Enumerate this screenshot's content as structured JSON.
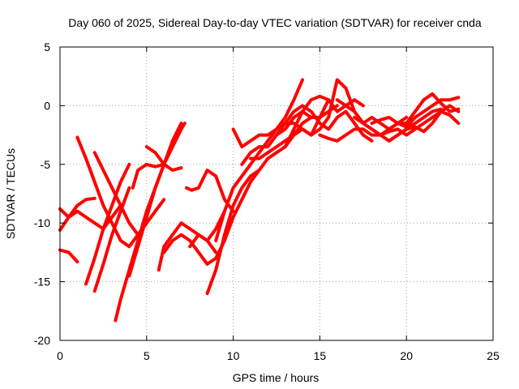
{
  "chart_data": {
    "type": "line",
    "title": "Day 060 of 2025, Sidereal Day-to-day VTEC variation (SDTVAR) for receiver cnda",
    "xlabel": "GPS time / hours",
    "ylabel": "SDTVAR / TECUs",
    "xlim": [
      0,
      25
    ],
    "ylim": [
      -20,
      5
    ],
    "xticks": [
      0,
      5,
      10,
      15,
      20,
      25
    ],
    "yticks": [
      -20,
      -15,
      -10,
      -5,
      0,
      5
    ],
    "xtick_labels": [
      "0",
      "5",
      "10",
      "15",
      "20",
      "25"
    ],
    "ytick_labels": [
      "-20",
      "-15",
      "-10",
      "-5",
      "0",
      "5"
    ],
    "grid": true,
    "legend": "none",
    "color": "#ff0000",
    "series": [
      {
        "x": [
          0.0,
          0.5,
          1.0,
          1.5,
          2.0
        ],
        "y": [
          -8.8,
          -9.5,
          -8.5,
          -8.0,
          -7.9
        ]
      },
      {
        "x": [
          0.0,
          0.5,
          1.0
        ],
        "y": [
          -12.3,
          -12.5,
          -13.3
        ]
      },
      {
        "x": [
          0.0,
          0.5,
          1.0,
          1.5,
          2.0,
          2.5,
          3.0,
          3.5
        ],
        "y": [
          -10.6,
          -9.5,
          -9.0,
          -9.5,
          -10.0,
          -10.5,
          -9.5,
          -8.5
        ]
      },
      {
        "x": [
          1.0,
          1.5,
          2.0,
          2.5,
          3.0,
          3.5,
          4.0,
          4.5,
          5.0
        ],
        "y": [
          -2.7,
          -4.5,
          -6.5,
          -8.5,
          -10.0,
          -11.5,
          -12.0,
          -11.0,
          -10.0
        ]
      },
      {
        "x": [
          1.5,
          2.0,
          2.5,
          3.0,
          3.5,
          4.0
        ],
        "y": [
          -15.2,
          -13.0,
          -10.5,
          -8.5,
          -6.5,
          -5.0
        ]
      },
      {
        "x": [
          2.0,
          2.5,
          3.0,
          3.5,
          4.0,
          4.5,
          5.0,
          5.5,
          6.0
        ],
        "y": [
          -4.0,
          -5.5,
          -7.0,
          -8.5,
          -10.0,
          -11.0,
          -10.0,
          -9.0,
          -8.0
        ]
      },
      {
        "x": [
          2.0,
          2.5,
          3.0,
          3.5,
          4.0
        ],
        "y": [
          -15.8,
          -13.5,
          -11.0,
          -9.0,
          -7.0
        ]
      },
      {
        "x": [
          3.2,
          3.5,
          4.0,
          4.5,
          5.0,
          5.5,
          6.0,
          6.5,
          7.0
        ],
        "y": [
          -18.3,
          -16.5,
          -14.0,
          -11.5,
          -9.0,
          -7.0,
          -5.0,
          -3.0,
          -1.5
        ]
      },
      {
        "x": [
          4.0,
          4.5,
          5.0,
          5.5,
          6.0,
          6.5,
          7.0,
          7.2
        ],
        "y": [
          -14.5,
          -12.0,
          -9.5,
          -7.0,
          -5.0,
          -3.5,
          -2.0,
          -1.5
        ]
      },
      {
        "x": [
          4.2,
          4.5,
          5.0,
          5.5,
          6.0
        ],
        "y": [
          -7.0,
          -5.5,
          -5.0,
          -5.2,
          -5.0
        ]
      },
      {
        "x": [
          5.0,
          5.5,
          6.0,
          6.5,
          7.0
        ],
        "y": [
          -3.5,
          -4.0,
          -5.0,
          -5.5,
          -5.3
        ]
      },
      {
        "x": [
          5.7,
          6.0,
          6.5,
          7.0,
          7.5,
          8.0,
          8.5,
          9.0,
          9.5
        ],
        "y": [
          -14.0,
          -12.0,
          -11.0,
          -10.0,
          -10.5,
          -11.0,
          -11.5,
          -10.5,
          -9.0
        ]
      },
      {
        "x": [
          6.0,
          6.5,
          7.0,
          7.5,
          8.0,
          8.5,
          9.0
        ],
        "y": [
          -12.5,
          -11.5,
          -11.0,
          -11.5,
          -12.5,
          -13.5,
          -13.0
        ]
      },
      {
        "x": [
          7.5,
          8.0,
          8.5,
          9.0
        ],
        "y": [
          -12.0,
          -11.0,
          -11.5,
          -12.5
        ]
      },
      {
        "x": [
          7.3,
          7.6,
          8.0,
          8.5,
          9.0,
          9.5,
          10.0
        ],
        "y": [
          -7.0,
          -7.2,
          -7.0,
          -5.5,
          -6.0,
          -8.0,
          -9.0
        ]
      },
      {
        "x": [
          8.5,
          9.0,
          9.5,
          10.0,
          10.5,
          11.0,
          11.5
        ],
        "y": [
          -16.0,
          -14.0,
          -11.0,
          -8.5,
          -7.0,
          -6.0,
          -5.5
        ]
      },
      {
        "x": [
          9.0,
          9.5,
          10.0,
          10.5,
          11.0,
          11.5,
          12.0
        ],
        "y": [
          -13.0,
          -11.5,
          -9.5,
          -8.0,
          -6.5,
          -5.5,
          -4.5
        ]
      },
      {
        "x": [
          9.0,
          9.5,
          10.0,
          10.5,
          11.0,
          11.5,
          12.0,
          12.5,
          13.0,
          13.5,
          14.0
        ],
        "y": [
          -11.5,
          -9.0,
          -7.0,
          -6.0,
          -5.0,
          -4.0,
          -3.0,
          -2.0,
          -1.0,
          0.5,
          2.2
        ]
      },
      {
        "x": [
          10.0,
          10.5,
          11.0,
          11.5,
          12.0,
          12.5,
          13.0,
          13.5,
          14.0,
          14.5,
          15.0,
          15.5
        ],
        "y": [
          -2.0,
          -3.5,
          -3.0,
          -2.5,
          -2.5,
          -2.0,
          -1.5,
          -1.5,
          -2.0,
          -2.5,
          -1.0,
          0.5
        ]
      },
      {
        "x": [
          10.5,
          11.0,
          11.5,
          12.0,
          12.5,
          13.0,
          13.5,
          14.0,
          14.5
        ],
        "y": [
          -5.0,
          -4.0,
          -3.5,
          -3.5,
          -2.5,
          -2.0,
          -1.0,
          -0.5,
          -1.0
        ]
      },
      {
        "x": [
          11.0,
          11.5,
          12.0,
          12.5,
          13.0,
          13.5,
          14.0,
          14.5,
          15.0,
          15.5,
          16.0
        ],
        "y": [
          -4.5,
          -4.5,
          -4.0,
          -3.5,
          -3.0,
          -2.5,
          -1.5,
          -1.0,
          -1.0,
          -0.5,
          0.0
        ]
      },
      {
        "x": [
          12.0,
          12.5,
          13.0,
          13.5,
          14.0,
          14.5,
          15.0,
          15.5,
          16.0,
          16.5,
          17.0,
          17.5
        ],
        "y": [
          -4.5,
          -4.0,
          -3.5,
          -2.0,
          -0.5,
          0.5,
          0.8,
          0.5,
          -0.5,
          0.0,
          0.5,
          0.0
        ]
      },
      {
        "x": [
          12.5,
          13.0,
          13.5,
          14.0,
          14.5,
          15.0,
          15.5,
          16.0,
          16.5,
          17.0,
          17.5,
          18.0
        ],
        "y": [
          -2.5,
          -1.5,
          -0.5,
          0.0,
          -0.5,
          -1.5,
          -2.0,
          -1.0,
          -0.5,
          -1.5,
          -2.5,
          -3.0
        ]
      },
      {
        "x": [
          13.0,
          13.5,
          14.0,
          14.5,
          15.0,
          15.5,
          16.0,
          16.5,
          17.0,
          17.5,
          18.0,
          18.5,
          19.0,
          19.5,
          20.0
        ],
        "y": [
          -3.5,
          -2.5,
          -2.0,
          -2.5,
          -2.0,
          -1.0,
          2.2,
          1.5,
          -0.5,
          -1.5,
          -1.0,
          -1.5,
          -2.0,
          -1.5,
          -1.0
        ]
      },
      {
        "x": [
          15.0,
          15.5,
          16.0,
          16.5,
          17.0,
          17.5,
          18.0,
          18.5,
          19.0,
          19.5,
          20.0,
          20.5,
          21.0,
          21.5,
          22.0
        ],
        "y": [
          -2.5,
          -2.8,
          -3.0,
          -2.5,
          -2.0,
          -2.0,
          -2.5,
          -2.5,
          -3.0,
          -2.5,
          -2.0,
          -1.5,
          -1.0,
          -0.5,
          -0.3
        ]
      },
      {
        "x": [
          16.0,
          16.5,
          17.0,
          17.5,
          18.0,
          18.5,
          19.0,
          19.5,
          20.0,
          20.5,
          21.0,
          21.5,
          22.0,
          22.5,
          23.0
        ],
        "y": [
          0.5,
          0.0,
          -0.5,
          -1.5,
          -2.0,
          -2.5,
          -2.0,
          -1.5,
          -1.8,
          -1.0,
          -0.5,
          0.0,
          0.5,
          0.5,
          0.7
        ]
      },
      {
        "x": [
          17.0,
          17.5,
          18.0,
          18.5,
          19.0,
          19.5,
          20.0,
          20.5,
          21.0,
          21.5,
          22.0,
          22.5,
          23.0
        ],
        "y": [
          -1.0,
          -1.5,
          -2.0,
          -2.5,
          -2.2,
          -2.0,
          -2.5,
          -2.0,
          -1.5,
          -1.0,
          -0.5,
          -0.8,
          -1.5
        ]
      },
      {
        "x": [
          18.0,
          18.5,
          19.0,
          19.5,
          20.0,
          20.5,
          21.0,
          21.5,
          22.0,
          22.5,
          23.0
        ],
        "y": [
          -1.5,
          -1.2,
          -1.0,
          -1.5,
          -1.5,
          -0.5,
          0.5,
          1.0,
          0.2,
          -0.5,
          -0.3
        ]
      },
      {
        "x": [
          19.0,
          19.5,
          20.0,
          20.5,
          21.0,
          21.5,
          22.0,
          22.5,
          23.0
        ],
        "y": [
          -3.0,
          -2.5,
          -2.0,
          -1.8,
          -2.2,
          -1.5,
          -0.5,
          0.0,
          -0.5
        ]
      }
    ]
  }
}
